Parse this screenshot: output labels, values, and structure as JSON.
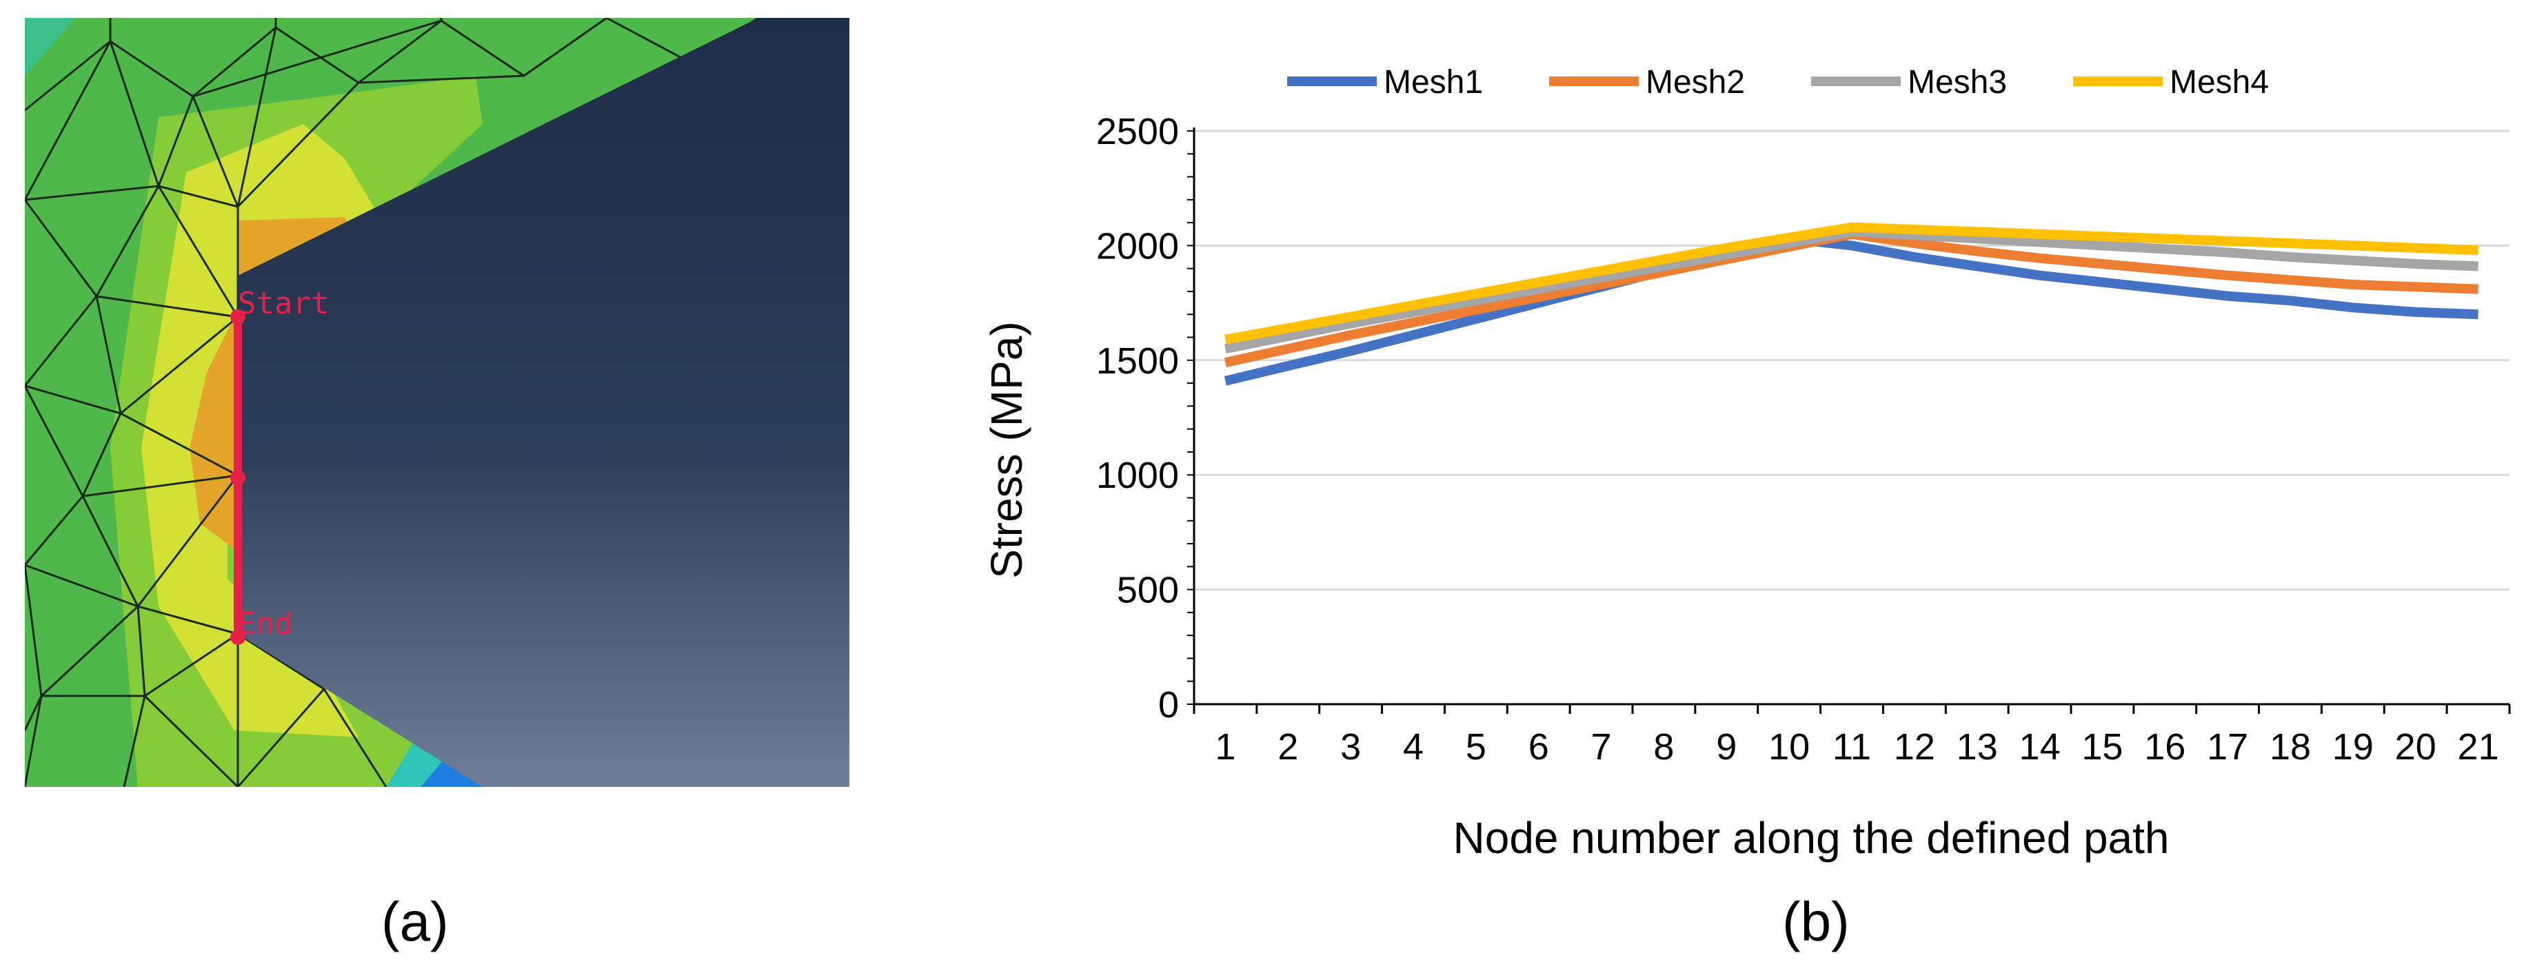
{
  "panel_a": {
    "label": "(a)",
    "start_label": "Start",
    "end_label": "End",
    "colors": {
      "mesh_background": "#4eb84a",
      "hole_top": "#1f2e48",
      "hole_bottom": "#6e7e97",
      "path_line": "#e8214a",
      "hot_orange": "#e5a52b",
      "hot_yellow": "#d3e135",
      "mesh_light": "#86cc38",
      "mesh_cyan": "#2ec5b8",
      "mesh_blue": "#1f7fe0",
      "mesh_lines": "#1c2a1c"
    }
  },
  "panel_b": {
    "label": "(b)"
  },
  "chart_data": {
    "type": "line",
    "title": "",
    "xlabel": "Node number along the defined path",
    "ylabel": "Stress (MPa)",
    "ylim": [
      0,
      2500
    ],
    "yticks": [
      "0",
      "500",
      "1000",
      "1500",
      "2000",
      "2500"
    ],
    "y_tick_values": [
      0,
      500,
      1000,
      1500,
      2000,
      2500
    ],
    "x": [
      "1",
      "2",
      "3",
      "4",
      "5",
      "6",
      "7",
      "8",
      "9",
      "10",
      "11",
      "12",
      "13",
      "14",
      "15",
      "16",
      "17",
      "18",
      "19",
      "20",
      "21"
    ],
    "grid": "horizontal",
    "legend_position": "top",
    "series": [
      {
        "name": "Mesh1",
        "color": "#4472c4",
        "values": [
          1410,
          1475,
          1540,
          1610,
          1680,
          1750,
          1820,
          1890,
          1960,
          2030,
          2000,
          1950,
          1910,
          1870,
          1840,
          1810,
          1780,
          1760,
          1730,
          1710,
          1700
        ]
      },
      {
        "name": "Mesh2",
        "color": "#ed7d31",
        "values": [
          1490,
          1550,
          1610,
          1665,
          1720,
          1775,
          1830,
          1885,
          1940,
          1995,
          2050,
          2010,
          1975,
          1945,
          1920,
          1895,
          1870,
          1850,
          1830,
          1820,
          1810
        ]
      },
      {
        "name": "Mesh3",
        "color": "#a5a5a5",
        "values": [
          1550,
          1605,
          1660,
          1710,
          1760,
          1810,
          1860,
          1910,
          1960,
          2010,
          2060,
          2045,
          2030,
          2015,
          2000,
          1985,
          1970,
          1950,
          1935,
          1920,
          1910
        ]
      },
      {
        "name": "Mesh4",
        "color": "#ffc000",
        "values": [
          1590,
          1640,
          1690,
          1740,
          1790,
          1840,
          1890,
          1940,
          1990,
          2035,
          2080,
          2070,
          2060,
          2050,
          2040,
          2030,
          2020,
          2010,
          2000,
          1990,
          1980
        ]
      }
    ]
  }
}
